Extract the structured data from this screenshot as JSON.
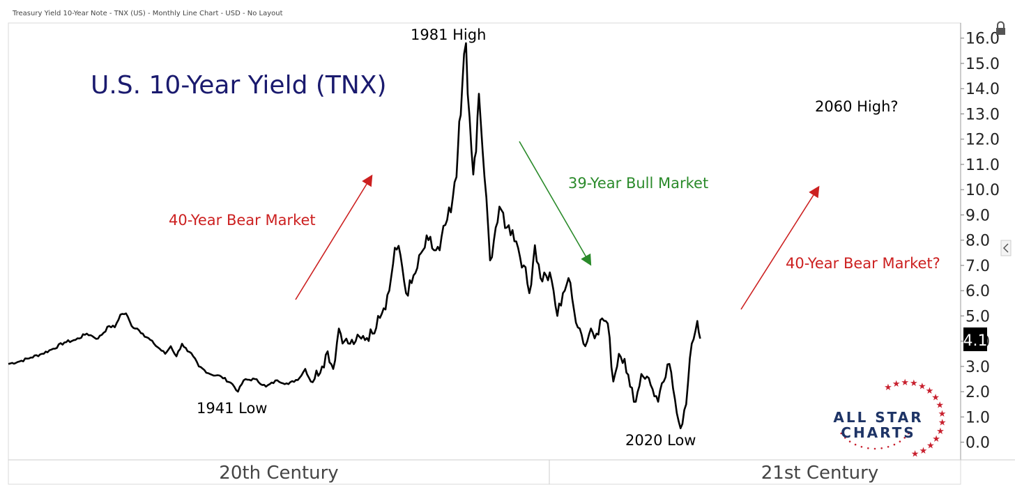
{
  "header": "Treasury Yield 10-Year Note - TNX (US) - Monthly Line Chart - USD - No Layout",
  "chart_data": {
    "type": "line",
    "title": "U.S. 10-Year Yield (TNX)",
    "xlabel": "",
    "ylabel": "",
    "x_range": [
      1900,
      2070
    ],
    "ylim": [
      -0.7,
      16.6
    ],
    "y_ticks": [
      "16.0",
      "15.0",
      "14.0",
      "13.0",
      "12.0",
      "11.0",
      "10.0",
      "9.0",
      "8.0",
      "7.0",
      "6.0",
      "5.0",
      "4.0",
      "3.0",
      "2.0",
      "1.0",
      "0.0"
    ],
    "last_value_label": "4.1",
    "series": [
      {
        "values": [
          [
            1900,
            3.1
          ],
          [
            1902,
            3.2
          ],
          [
            1904,
            3.35
          ],
          [
            1906,
            3.5
          ],
          [
            1908,
            3.7
          ],
          [
            1910,
            3.95
          ],
          [
            1912,
            4.05
          ],
          [
            1914,
            4.3
          ],
          [
            1915,
            4.2
          ],
          [
            1916,
            4.1
          ],
          [
            1918,
            4.6
          ],
          [
            1919,
            4.55
          ],
          [
            1920,
            5.05
          ],
          [
            1921,
            5.1
          ],
          [
            1922,
            4.6
          ],
          [
            1923,
            4.5
          ],
          [
            1924,
            4.3
          ],
          [
            1926,
            3.9
          ],
          [
            1928,
            3.5
          ],
          [
            1929,
            3.8
          ],
          [
            1930,
            3.4
          ],
          [
            1931,
            3.9
          ],
          [
            1932,
            3.6
          ],
          [
            1933,
            3.4
          ],
          [
            1934,
            3.0
          ],
          [
            1936,
            2.7
          ],
          [
            1938,
            2.6
          ],
          [
            1940,
            2.3
          ],
          [
            1941,
            2.0
          ],
          [
            1942,
            2.45
          ],
          [
            1944,
            2.5
          ],
          [
            1946,
            2.2
          ],
          [
            1948,
            2.45
          ],
          [
            1950,
            2.3
          ],
          [
            1952,
            2.55
          ],
          [
            1953,
            2.9
          ],
          [
            1954,
            2.4
          ],
          [
            1956,
            3.0
          ],
          [
            1957,
            3.6
          ],
          [
            1958,
            2.9
          ],
          [
            1959,
            4.5
          ],
          [
            1960,
            4.0
          ],
          [
            1961,
            3.9
          ],
          [
            1962,
            4.0
          ],
          [
            1963,
            4.1
          ],
          [
            1965,
            4.3
          ],
          [
            1966,
            5.0
          ],
          [
            1967,
            5.3
          ],
          [
            1968,
            6.0
          ],
          [
            1969,
            7.7
          ],
          [
            1970,
            7.4
          ],
          [
            1971,
            5.9
          ],
          [
            1972,
            6.3
          ],
          [
            1973,
            6.9
          ],
          [
            1974,
            7.6
          ],
          [
            1975,
            8.0
          ],
          [
            1976,
            7.6
          ],
          [
            1977,
            7.6
          ],
          [
            1978,
            8.6
          ],
          [
            1979,
            9.1
          ],
          [
            1980,
            10.5
          ],
          [
            1980.5,
            12.7
          ],
          [
            1981,
            14.0
          ],
          [
            1981.7,
            15.8
          ],
          [
            1982,
            13.8
          ],
          [
            1983,
            10.6
          ],
          [
            1983.5,
            11.5
          ],
          [
            1984,
            13.8
          ],
          [
            1985,
            10.5
          ],
          [
            1986,
            7.2
          ],
          [
            1987,
            8.5
          ],
          [
            1988,
            9.2
          ],
          [
            1989,
            8.5
          ],
          [
            1990,
            8.4
          ],
          [
            1991,
            7.7
          ],
          [
            1992,
            7.0
          ],
          [
            1993,
            5.9
          ],
          [
            1994,
            7.8
          ],
          [
            1995,
            6.5
          ],
          [
            1996,
            6.6
          ],
          [
            1997,
            6.4
          ],
          [
            1998,
            5.0
          ],
          [
            1999,
            5.9
          ],
          [
            2000,
            6.5
          ],
          [
            2001,
            5.2
          ],
          [
            2002,
            4.5
          ],
          [
            2003,
            3.8
          ],
          [
            2004,
            4.5
          ],
          [
            2005,
            4.3
          ],
          [
            2006,
            4.9
          ],
          [
            2007,
            4.7
          ],
          [
            2008,
            2.4
          ],
          [
            2009,
            3.5
          ],
          [
            2010,
            3.3
          ],
          [
            2011,
            2.2
          ],
          [
            2012,
            1.6
          ],
          [
            2013,
            2.7
          ],
          [
            2014,
            2.6
          ],
          [
            2015,
            2.1
          ],
          [
            2016,
            1.6
          ],
          [
            2017,
            2.4
          ],
          [
            2018,
            3.1
          ],
          [
            2019,
            1.7
          ],
          [
            2020,
            0.55
          ],
          [
            2021,
            1.5
          ],
          [
            2022,
            3.9
          ],
          [
            2023,
            4.8
          ],
          [
            2023.5,
            4.1
          ]
        ]
      }
    ],
    "annotations": {
      "high_1981": "1981 High",
      "low_1941": "1941 Low",
      "low_2020": "2020 Low",
      "high_2060": "2060 High?",
      "bear_market": "40-Year Bear Market",
      "bull_market": "39-Year Bull Market",
      "bear_market_future": "40-Year Bear Market?"
    },
    "eras": [
      "20th Century",
      "21st Century"
    ],
    "colors": {
      "line": "#000000",
      "title": "#1a1a6e",
      "bear": "#cc2020",
      "bull": "#2a8a2a",
      "logo_navy": "#1e3466",
      "logo_red": "#c8202e"
    },
    "logo": {
      "line1": "ALL STAR",
      "line2": "CHARTS"
    }
  }
}
